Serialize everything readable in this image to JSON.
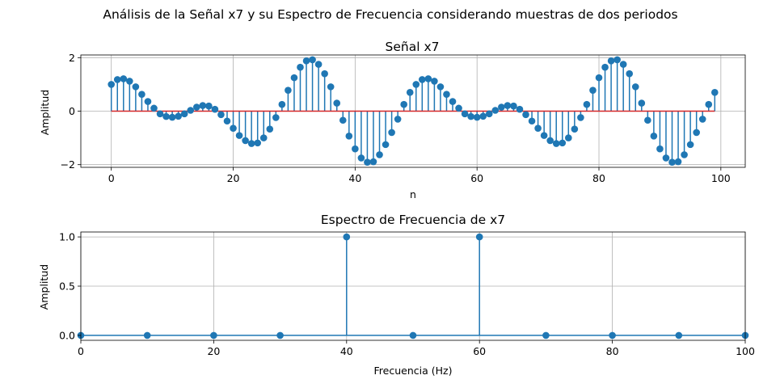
{
  "figure": {
    "suptitle": "Análisis de la Señal x7 y su Espectro de Frecuencia considerando muestras de dos periodos",
    "colors": {
      "stem": "#1f77b4",
      "baseline": "#d62728",
      "grid": "#b0b0b0"
    }
  },
  "chart_data": [
    {
      "type": "stem",
      "title": "Señal x7",
      "xlabel": "n",
      "ylabel": "Amplitud",
      "xlim": [
        -5,
        104
      ],
      "ylim": [
        -2.1,
        2.1
      ],
      "xticks": [
        0,
        20,
        40,
        60,
        80,
        100
      ],
      "yticks": [
        -2,
        0,
        2
      ],
      "grid": true,
      "baseline": 0,
      "x": [
        0,
        1,
        2,
        3,
        4,
        5,
        6,
        7,
        8,
        9,
        10,
        11,
        12,
        13,
        14,
        15,
        16,
        17,
        18,
        19,
        20,
        21,
        22,
        23,
        24,
        25,
        26,
        27,
        28,
        29,
        30,
        31,
        32,
        33,
        34,
        35,
        36,
        37,
        38,
        39,
        40,
        41,
        42,
        43,
        44,
        45,
        46,
        47,
        48,
        49,
        50,
        51,
        52,
        53,
        54,
        55,
        56,
        57,
        58,
        59,
        60,
        61,
        62,
        63,
        64,
        65,
        66,
        67,
        68,
        69,
        70,
        71,
        72,
        73,
        74,
        75,
        76,
        77,
        78,
        79,
        80,
        81,
        82,
        83,
        84,
        85,
        86,
        87,
        88,
        89,
        90,
        91,
        92,
        93,
        94,
        95,
        96,
        97,
        98,
        99
      ],
      "values": [
        1.0,
        1.18,
        1.21,
        1.12,
        0.91,
        0.63,
        0.36,
        0.11,
        -0.1,
        -0.2,
        -0.23,
        -0.19,
        -0.1,
        0.03,
        0.15,
        0.21,
        0.19,
        0.07,
        -0.13,
        -0.37,
        -0.64,
        -0.91,
        -1.1,
        -1.21,
        -1.19,
        -1.0,
        -0.67,
        -0.24,
        0.25,
        0.78,
        1.25,
        1.64,
        1.88,
        1.92,
        1.75,
        1.4,
        0.91,
        0.3,
        -0.34,
        -0.93,
        -1.41,
        -1.75,
        -1.91,
        -1.89,
        -1.63,
        -1.25,
        -0.8,
        -0.3,
        0.25,
        0.7,
        1.0,
        1.18,
        1.21,
        1.12,
        0.91,
        0.63,
        0.36,
        0.11,
        -0.1,
        -0.2,
        -0.23,
        -0.19,
        -0.1,
        0.03,
        0.15,
        0.21,
        0.19,
        0.07,
        -0.13,
        -0.37,
        -0.64,
        -0.91,
        -1.1,
        -1.21,
        -1.19,
        -1.0,
        -0.67,
        -0.24,
        0.25,
        0.78,
        1.25,
        1.64,
        1.88,
        1.92,
        1.75,
        1.4,
        0.91,
        0.3,
        -0.34,
        -0.93,
        -1.41,
        -1.75,
        -1.91,
        -1.89,
        -1.63,
        -1.25,
        -0.8,
        -0.3,
        0.25,
        0.7
      ]
    },
    {
      "type": "stem",
      "title": "Espectro de Frecuencia de x7",
      "xlabel": "Frecuencia (Hz)",
      "ylabel": "Amplitud",
      "xlim": [
        0,
        100
      ],
      "ylim": [
        -0.05,
        1.05
      ],
      "xticks": [
        0,
        20,
        40,
        60,
        80,
        100
      ],
      "yticks": [
        0.0,
        0.5,
        1.0
      ],
      "ytick_labels": [
        "0.0",
        "0.5",
        "1.0"
      ],
      "grid": true,
      "baseline": 0,
      "x": [
        0,
        10,
        20,
        30,
        40,
        50,
        60,
        70,
        80,
        90,
        100
      ],
      "values": [
        0,
        0,
        0,
        0,
        1,
        0,
        1,
        0,
        0,
        0,
        0
      ]
    }
  ]
}
